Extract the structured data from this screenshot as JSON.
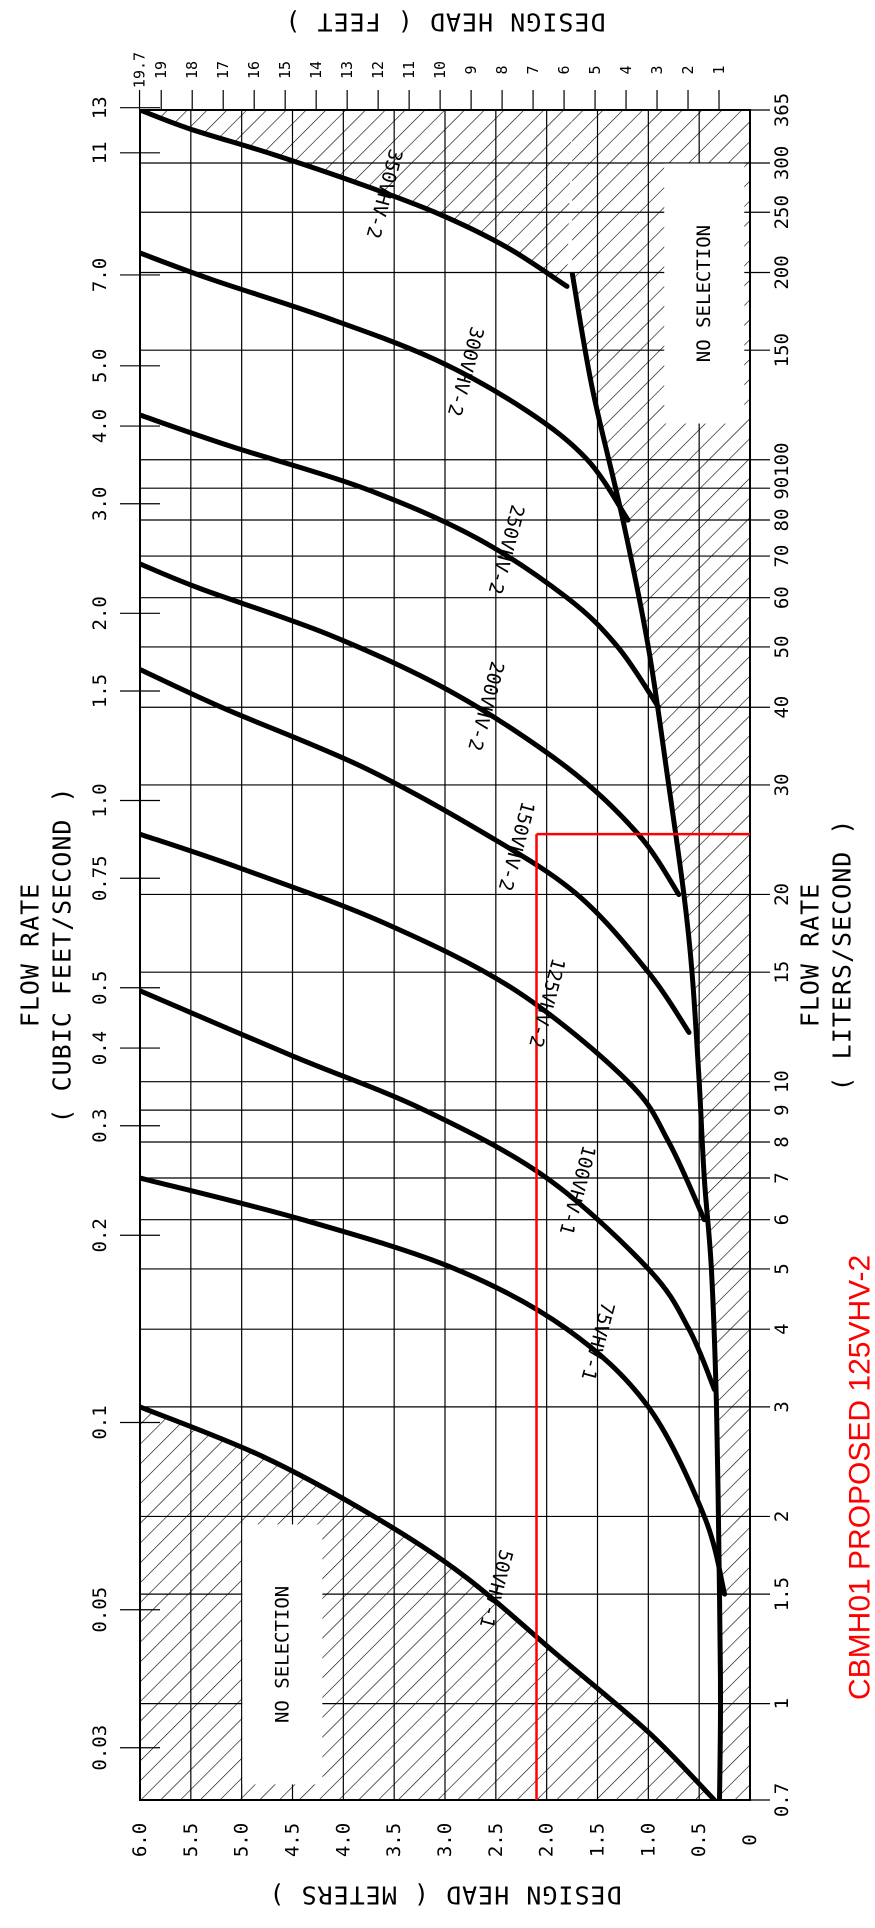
{
  "chart_data": {
    "type": "line",
    "orientation": "rotated-90",
    "title": "",
    "axes": {
      "flow_cfs": {
        "title": [
          "FLOW RATE",
          "( CUBIC FEET/SECOND )"
        ],
        "scale": "log",
        "ticks": [
          "0.03",
          "0.05",
          "0.1",
          "0.2",
          "0.3",
          "0.4",
          "0.5",
          "0.75",
          "1.0",
          "1.5",
          "2.0",
          "3.0",
          "4.0",
          "5.0",
          "7.0",
          "11",
          "13"
        ],
        "tick_values": [
          0.03,
          0.05,
          0.1,
          0.2,
          0.3,
          0.4,
          0.5,
          0.75,
          1.0,
          1.5,
          2.0,
          3.0,
          4.0,
          5.0,
          7.0,
          11.0,
          13.0
        ]
      },
      "flow_lps": {
        "title": [
          "FLOW RATE",
          "( LITERS/SECOND )"
        ],
        "scale": "log",
        "range": [
          0.7,
          365
        ],
        "ticks": [
          "0.7",
          "1",
          "1.5",
          "2",
          "3",
          "4",
          "5",
          "6",
          "7",
          "8",
          "9",
          "10",
          "15",
          "20",
          "30",
          "40",
          "50",
          "60",
          "70",
          "80",
          "90",
          "100",
          "150",
          "200",
          "250",
          "300",
          "365"
        ],
        "tick_values": [
          0.7,
          1,
          1.5,
          2,
          3,
          4,
          5,
          6,
          7,
          8,
          9,
          10,
          15,
          20,
          30,
          40,
          50,
          60,
          70,
          80,
          90,
          100,
          150,
          200,
          250,
          300,
          365
        ]
      },
      "head_m": {
        "title": "DESIGN HEAD ( METERS )",
        "range": [
          0,
          6.0
        ],
        "ticks": [
          "0",
          "0.5",
          "1.0",
          "1.5",
          "2.0",
          "2.5",
          "3.0",
          "3.5",
          "4.0",
          "4.5",
          "5.0",
          "5.5",
          "6.0"
        ],
        "tick_values": [
          0,
          0.5,
          1.0,
          1.5,
          2.0,
          2.5,
          3.0,
          3.5,
          4.0,
          4.5,
          5.0,
          5.5,
          6.0
        ]
      },
      "head_ft": {
        "title": "DESIGN HEAD ( FEET )",
        "ticks": [
          "1",
          "2",
          "3",
          "4",
          "5",
          "6",
          "7",
          "8",
          "9",
          "10",
          "11",
          "12",
          "13",
          "14",
          "15",
          "16",
          "17",
          "18",
          "19",
          "19.7"
        ],
        "tick_values": [
          1,
          2,
          3,
          4,
          5,
          6,
          7,
          8,
          9,
          10,
          11,
          12,
          13,
          14,
          15,
          16,
          17,
          18,
          19,
          19.7
        ]
      }
    },
    "grid": true,
    "series": [
      {
        "name": "50VHV-1",
        "x_lps": [
          0.7,
          0.9,
          1.2,
          1.6,
          2.0,
          2.5,
          3.0
        ],
        "y_m": [
          0.35,
          1.0,
          1.9,
          2.8,
          3.7,
          4.8,
          6.0
        ]
      },
      {
        "name": "75VHV-1",
        "x_lps": [
          1.5,
          2.0,
          3.0,
          4.0,
          5.0,
          6.0,
          7.0
        ],
        "y_m": [
          0.25,
          0.45,
          1.0,
          1.8,
          2.9,
          4.4,
          6.0
        ]
      },
      {
        "name": "100VHV-1",
        "x_lps": [
          3.2,
          4.0,
          5.0,
          7.0,
          9.0,
          11.0,
          14.0
        ],
        "y_m": [
          0.35,
          0.6,
          1.0,
          2.0,
          3.2,
          4.5,
          6.0
        ]
      },
      {
        "name": "125VHV-2",
        "x_lps": [
          6.0,
          8.0,
          10.0,
          14.0,
          18.0,
          22.0,
          25.0
        ],
        "y_m": [
          0.45,
          0.8,
          1.2,
          2.3,
          3.6,
          5.0,
          6.0
        ]
      },
      {
        "name": "150VHV-2",
        "x_lps": [
          12.0,
          15.0,
          20.0,
          25.0,
          32.0,
          40.0,
          46.0
        ],
        "y_m": [
          0.6,
          1.0,
          1.7,
          2.6,
          3.8,
          5.2,
          6.0
        ]
      },
      {
        "name": "200VHV-2",
        "x_lps": [
          20.0,
          25.0,
          32.0,
          42.0,
          52.0,
          62.0,
          68.0
        ],
        "y_m": [
          0.7,
          1.1,
          1.8,
          2.9,
          4.1,
          5.4,
          6.0
        ]
      },
      {
        "name": "250VHV-2",
        "x_lps": [
          40.0,
          50.0,
          60.0,
          75.0,
          90.0,
          105.0,
          118.0
        ],
        "y_m": [
          0.9,
          1.3,
          1.8,
          2.7,
          3.8,
          5.1,
          6.0
        ]
      },
      {
        "name": "300VHV-2",
        "x_lps": [
          80.0,
          100.0,
          120.0,
          145.0,
          170.0,
          195.0,
          215.0
        ],
        "y_m": [
          1.2,
          1.6,
          2.2,
          3.1,
          4.2,
          5.3,
          6.0
        ]
      },
      {
        "name": "350VHV-2",
        "x_lps": [
          190.0,
          220.0,
          250.0,
          280.0,
          310.0,
          340.0,
          365.0
        ],
        "y_m": [
          1.8,
          2.4,
          3.1,
          3.9,
          4.7,
          5.5,
          6.0
        ]
      }
    ],
    "boundary_curve": {
      "x_lps": [
        0.7,
        1.0,
        1.5,
        3.0,
        5.0,
        7.0,
        10.0,
        15.0,
        20.0,
        30.0,
        50.0,
        80.0,
        130.0,
        200.0
      ],
      "y_m": [
        0.3,
        0.29,
        0.3,
        0.33,
        0.38,
        0.45,
        0.5,
        0.57,
        0.65,
        0.8,
        1.0,
        1.25,
        1.55,
        1.75
      ]
    },
    "no_selection_regions": [
      {
        "label": "NO SELECTION",
        "position": "low-flow / high-head"
      },
      {
        "label": "NO SELECTION",
        "position": "high-flow / low-head"
      }
    ],
    "annotation": {
      "selection_point": {
        "flow_lps": 25,
        "head_m": 2.1
      },
      "color": "#ff0000",
      "text": "CBMH01 PROPOSED 125VHV-2"
    }
  }
}
